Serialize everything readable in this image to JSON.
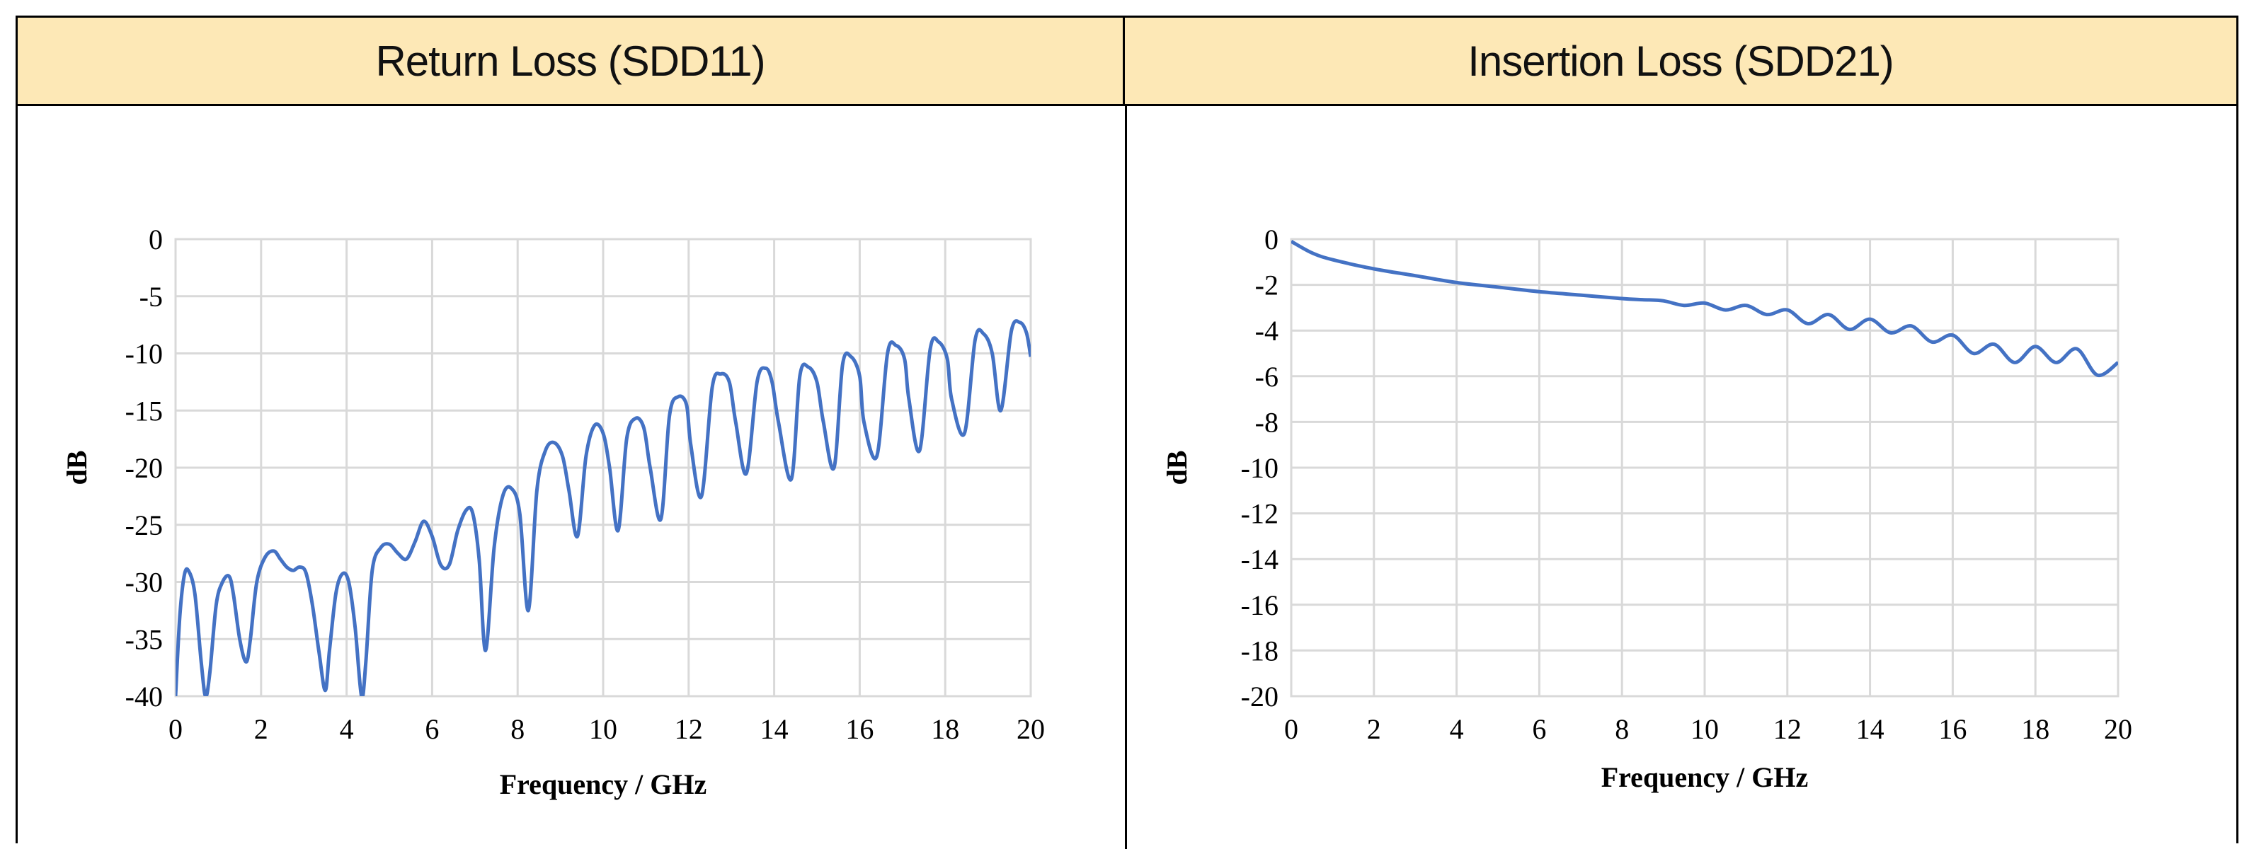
{
  "table": {
    "headers": [
      "Return Loss (SDD11)",
      "Insertion Loss (SDD21)"
    ]
  },
  "colors": {
    "header_bg": "#FDE8B6",
    "line": "#4472C4",
    "grid": "#D9D9D9"
  },
  "chart_data": [
    {
      "type": "line",
      "title": "Return Loss (SDD11)",
      "xlabel": "Frequency / GHz",
      "ylabel": "dB",
      "xlim": [
        0,
        20
      ],
      "ylim": [
        -40,
        0
      ],
      "xticks": [
        0,
        2,
        4,
        6,
        8,
        10,
        12,
        14,
        16,
        18,
        20
      ],
      "yticks": [
        0,
        -5,
        -10,
        -15,
        -20,
        -25,
        -30,
        -35,
        -40
      ],
      "grid": true,
      "x": [
        0,
        0.1,
        0.2,
        0.3,
        0.45,
        0.6,
        0.7,
        0.8,
        0.95,
        1.1,
        1.25,
        1.35,
        1.5,
        1.65,
        1.75,
        1.9,
        2.1,
        2.3,
        2.45,
        2.6,
        2.75,
        2.9,
        3.05,
        3.2,
        3.35,
        3.5,
        3.6,
        3.75,
        3.9,
        4.05,
        4.2,
        4.35,
        4.45,
        4.6,
        4.8,
        5.0,
        5.2,
        5.4,
        5.6,
        5.8,
        6.0,
        6.2,
        6.4,
        6.6,
        6.8,
        6.95,
        7.1,
        7.25,
        7.45,
        7.65,
        7.85,
        8.05,
        8.25,
        8.45,
        8.65,
        8.85,
        9.05,
        9.2,
        9.4,
        9.6,
        9.8,
        10.0,
        10.15,
        10.35,
        10.55,
        10.75,
        10.95,
        11.1,
        11.35,
        11.55,
        11.75,
        11.95,
        12.05,
        12.3,
        12.55,
        12.75,
        12.95,
        13.1,
        13.35,
        13.6,
        13.8,
        13.95,
        14.1,
        14.4,
        14.6,
        14.8,
        15.0,
        15.15,
        15.4,
        15.6,
        15.8,
        16.0,
        16.1,
        16.4,
        16.65,
        16.85,
        17.05,
        17.15,
        17.4,
        17.65,
        17.85,
        18.05,
        18.15,
        18.45,
        18.7,
        18.9,
        19.1,
        19.3,
        19.55,
        19.75,
        19.9,
        20.0
      ],
      "series": [
        {
          "values": [
            -40,
            -33,
            -29.5,
            -29,
            -31,
            -37,
            -40,
            -38,
            -32,
            -30,
            -29.5,
            -31,
            -35,
            -37,
            -35,
            -30,
            -27.8,
            -27.3,
            -28,
            -28.7,
            -29,
            -28.7,
            -29.2,
            -32,
            -36,
            -39.5,
            -36,
            -31,
            -29.3,
            -30,
            -34,
            -40,
            -37,
            -29,
            -27,
            -26.7,
            -27.5,
            -28,
            -26.5,
            -24.7,
            -26,
            -28.5,
            -28.5,
            -25.5,
            -23.7,
            -24,
            -28,
            -36,
            -27,
            -22.5,
            -21.8,
            -24,
            -32.5,
            -22,
            -18.5,
            -17.8,
            -19,
            -22,
            -26,
            -19,
            -16.3,
            -17,
            -20,
            -25.5,
            -17.5,
            -15.7,
            -16.5,
            -20,
            -24.5,
            -15.5,
            -13.8,
            -14.5,
            -18,
            -22.5,
            -13,
            -11.8,
            -12.5,
            -16,
            -20.5,
            -12.5,
            -11.3,
            -12.5,
            -16,
            -21,
            -12,
            -11.2,
            -12.5,
            -16,
            -20,
            -11,
            -10.3,
            -12,
            -16,
            -19,
            -10,
            -9.3,
            -10.5,
            -14,
            -18.5,
            -9.6,
            -9,
            -10.5,
            -14,
            -17,
            -8.8,
            -8.3,
            -10,
            -15,
            -8,
            -7.3,
            -8.2,
            -10.3
          ]
        }
      ]
    },
    {
      "type": "line",
      "title": "Insertion Loss (SDD21)",
      "xlabel": "Frequency / GHz",
      "ylabel": "dB",
      "xlim": [
        0,
        20
      ],
      "ylim": [
        -20,
        0
      ],
      "xticks": [
        0,
        2,
        4,
        6,
        8,
        10,
        12,
        14,
        16,
        18,
        20
      ],
      "yticks": [
        0,
        -2,
        -4,
        -6,
        -8,
        -10,
        -12,
        -14,
        -16,
        -18,
        -20
      ],
      "grid": true,
      "x": [
        0,
        0.5,
        1,
        2,
        3,
        4,
        5,
        6,
        7,
        8,
        8.5,
        9,
        9.5,
        10,
        10.5,
        11,
        11.5,
        12,
        12.5,
        13,
        13.5,
        14,
        14.5,
        15,
        15.5,
        16,
        16.5,
        17,
        17.5,
        18,
        18.5,
        19,
        19.5,
        20
      ],
      "series": [
        {
          "values": [
            -0.1,
            -0.6,
            -0.9,
            -1.3,
            -1.6,
            -1.9,
            -2.1,
            -2.3,
            -2.45,
            -2.6,
            -2.65,
            -2.7,
            -2.9,
            -2.8,
            -3.1,
            -2.9,
            -3.3,
            -3.1,
            -3.7,
            -3.3,
            -3.95,
            -3.5,
            -4.1,
            -3.8,
            -4.5,
            -4.2,
            -5.0,
            -4.6,
            -5.4,
            -4.7,
            -5.4,
            -4.8,
            -5.95,
            -5.4
          ]
        }
      ]
    }
  ]
}
